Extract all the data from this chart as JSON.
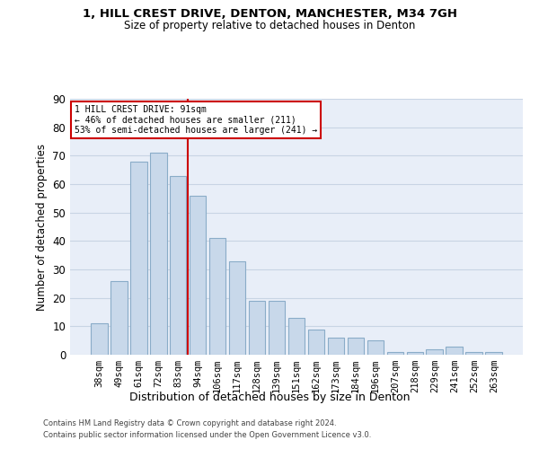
{
  "title_line1": "1, HILL CREST DRIVE, DENTON, MANCHESTER, M34 7GH",
  "title_line2": "Size of property relative to detached houses in Denton",
  "xlabel": "Distribution of detached houses by size in Denton",
  "ylabel": "Number of detached properties",
  "categories": [
    "38sqm",
    "49sqm",
    "61sqm",
    "72sqm",
    "83sqm",
    "94sqm",
    "106sqm",
    "117sqm",
    "128sqm",
    "139sqm",
    "151sqm",
    "162sqm",
    "173sqm",
    "184sqm",
    "196sqm",
    "207sqm",
    "218sqm",
    "229sqm",
    "241sqm",
    "252sqm",
    "263sqm"
  ],
  "values": [
    11,
    26,
    68,
    71,
    63,
    56,
    41,
    33,
    19,
    19,
    13,
    9,
    6,
    6,
    5,
    1,
    1,
    2,
    3,
    1,
    1
  ],
  "bar_color": "#c8d8ea",
  "bar_edge_color": "#8aacc8",
  "ylim": [
    0,
    90
  ],
  "yticks": [
    0,
    10,
    20,
    30,
    40,
    50,
    60,
    70,
    80,
    90
  ],
  "grid_color": "#c8d4e4",
  "background_color": "#e8eef8",
  "red_line_color": "#cc0000",
  "reference_line_x": 4.5,
  "annotation_text_line1": "1 HILL CREST DRIVE: 91sqm",
  "annotation_text_line2": "← 46% of detached houses are smaller (211)",
  "annotation_text_line3": "53% of semi-detached houses are larger (241) →",
  "footer_line1": "Contains HM Land Registry data © Crown copyright and database right 2024.",
  "footer_line2": "Contains public sector information licensed under the Open Government Licence v3.0."
}
